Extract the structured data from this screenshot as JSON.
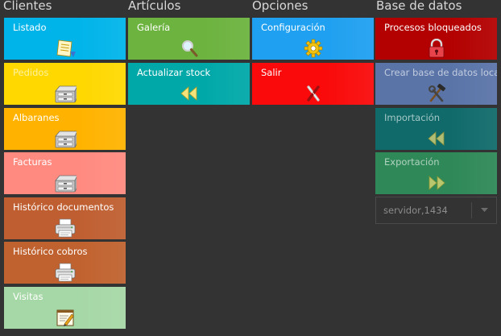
{
  "headers": {
    "clientes": "Clientes",
    "articulos": "Artículos",
    "opciones": "Opciones",
    "base_datos": "Base de datos"
  },
  "clientes": {
    "listado": "Listado",
    "pedidos": "Pedidos",
    "albaranes": "Albaranes",
    "facturas": "Facturas",
    "historico_documentos": "Histórico documentos",
    "historico_cobros": "Histórico cobros",
    "visitas": "Visitas"
  },
  "articulos": {
    "galeria": "Galería",
    "actualizar_stock": "Actualizar stock"
  },
  "opciones": {
    "configuracion": "Configuración",
    "salir": "Salir"
  },
  "base_datos": {
    "procesos_bloqueados": "Procesos bloqueados",
    "crear_base_local": "Crear base de datos local",
    "importacion": "Importación",
    "exportacion": "Exportación",
    "servidor_value": "servidor,1434"
  },
  "colors": {
    "background": "#333333",
    "listado": "#00b4ea",
    "pedidos": "#ffd800",
    "albaranes": "#ffb300",
    "facturas": "#ff8a80",
    "historico_documentos": "#bf5f31",
    "historico_cobros": "#c0622f",
    "visitas": "#a6d7a6",
    "galeria": "#6cb33f",
    "actualizar_stock": "#00a8a8",
    "configuracion": "#1fa0f0",
    "salir": "#fa0a0a",
    "procesos_bloqueados": "#b30000",
    "crear_base_local": "#5a74a8",
    "importacion": "#106a6a",
    "exportacion": "#2e8857"
  },
  "icons": {
    "listado": "list-document-icon",
    "pedidos": "archive-drawer-icon",
    "albaranes": "archive-drawer-icon",
    "facturas": "archive-drawer-icon",
    "historico_documentos": "printer-icon",
    "historico_cobros": "printer-icon",
    "visitas": "notepad-pencil-icon",
    "galeria": "magnifier-icon",
    "actualizar_stock": "rewind-icon",
    "configuracion": "gear-icon",
    "salir": "exit-x-icon",
    "procesos_bloqueados": "padlock-icon",
    "crear_base_local": "tools-icon",
    "importacion": "rewind-icon",
    "exportacion": "fast-forward-icon",
    "servidor_dropdown": "chevron-down-icon"
  }
}
